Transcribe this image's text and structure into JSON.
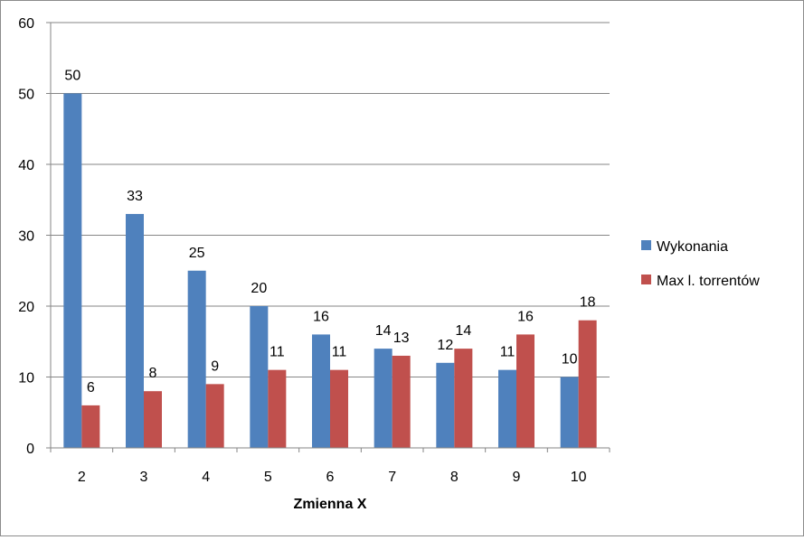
{
  "chart_data": {
    "type": "bar",
    "categories": [
      "2",
      "3",
      "4",
      "5",
      "6",
      "7",
      "8",
      "9",
      "10"
    ],
    "series": [
      {
        "name": "Wykonania",
        "color": "#4F81BD",
        "values": [
          50,
          33,
          25,
          20,
          16,
          14,
          12,
          11,
          10
        ]
      },
      {
        "name": "Max l. torrentów",
        "color": "#C0504D",
        "values": [
          6,
          8,
          9,
          11,
          11,
          13,
          14,
          16,
          18
        ]
      }
    ],
    "xlabel": "Zmienna X",
    "ylabel": "",
    "ylim": [
      0,
      60
    ],
    "yticks": [
      0,
      10,
      20,
      30,
      40,
      50,
      60
    ],
    "grid": true,
    "legend_position": "right",
    "data_labels": true
  }
}
